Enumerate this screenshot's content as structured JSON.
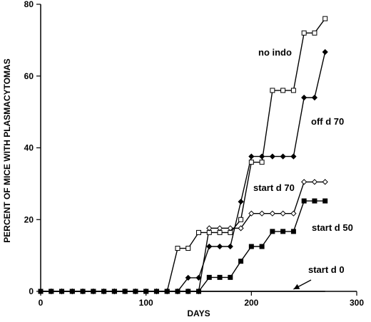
{
  "chart_data": {
    "type": "line",
    "title": "",
    "xlabel": "DAYS",
    "ylabel": "PERCENT OF MICE WITH PLASMACYTOMAS",
    "xlim": [
      0,
      300
    ],
    "ylim": [
      0,
      80
    ],
    "xticks": [
      0,
      100,
      200,
      300
    ],
    "yticks": [
      0,
      20,
      40,
      60,
      80
    ],
    "grid": false,
    "legend": "none",
    "series": [
      {
        "name": "no indo",
        "marker": "open-square",
        "color": "#000000",
        "points": [
          [
            0,
            0
          ],
          [
            10,
            0
          ],
          [
            20,
            0
          ],
          [
            30,
            0
          ],
          [
            40,
            0
          ],
          [
            50,
            0
          ],
          [
            60,
            0
          ],
          [
            70,
            0
          ],
          [
            80,
            0
          ],
          [
            90,
            0
          ],
          [
            100,
            0
          ],
          [
            110,
            0
          ],
          [
            120,
            0
          ],
          [
            130,
            12
          ],
          [
            140,
            12
          ],
          [
            150,
            16.4
          ],
          [
            160,
            16.4
          ],
          [
            170,
            16.4
          ],
          [
            180,
            16.4
          ],
          [
            190,
            20
          ],
          [
            200,
            36
          ],
          [
            210,
            36
          ],
          [
            220,
            56
          ],
          [
            230,
            56
          ],
          [
            240,
            56
          ],
          [
            250,
            72
          ],
          [
            260,
            72
          ],
          [
            270,
            76
          ]
        ]
      },
      {
        "name": "off d 70",
        "marker": "filled-diamond",
        "color": "#000000",
        "points": [
          [
            0,
            0
          ],
          [
            10,
            0
          ],
          [
            20,
            0
          ],
          [
            30,
            0
          ],
          [
            40,
            0
          ],
          [
            50,
            0
          ],
          [
            60,
            0
          ],
          [
            70,
            0
          ],
          [
            80,
            0
          ],
          [
            90,
            0
          ],
          [
            100,
            0
          ],
          [
            110,
            0
          ],
          [
            120,
            0
          ],
          [
            130,
            0
          ],
          [
            140,
            3.8
          ],
          [
            150,
            3.8
          ],
          [
            160,
            12.5
          ],
          [
            170,
            12.5
          ],
          [
            180,
            12.5
          ],
          [
            190,
            25
          ],
          [
            200,
            37.6
          ],
          [
            210,
            37.6
          ],
          [
            220,
            37.6
          ],
          [
            230,
            37.6
          ],
          [
            240,
            37.6
          ],
          [
            250,
            54
          ],
          [
            260,
            54
          ],
          [
            270,
            66.7
          ]
        ]
      },
      {
        "name": "start d 70",
        "marker": "open-diamond",
        "color": "#000000",
        "points": [
          [
            0,
            0
          ],
          [
            10,
            0
          ],
          [
            20,
            0
          ],
          [
            30,
            0
          ],
          [
            40,
            0
          ],
          [
            50,
            0
          ],
          [
            60,
            0
          ],
          [
            70,
            0
          ],
          [
            80,
            0
          ],
          [
            90,
            0
          ],
          [
            100,
            0
          ],
          [
            110,
            0
          ],
          [
            120,
            0
          ],
          [
            130,
            0
          ],
          [
            140,
            0
          ],
          [
            150,
            0
          ],
          [
            160,
            17.6
          ],
          [
            170,
            17.6
          ],
          [
            180,
            17.6
          ],
          [
            190,
            17.6
          ],
          [
            200,
            21.7
          ],
          [
            210,
            21.7
          ],
          [
            220,
            21.7
          ],
          [
            230,
            21.7
          ],
          [
            240,
            21.7
          ],
          [
            250,
            30.5
          ],
          [
            260,
            30.5
          ],
          [
            270,
            30.5
          ]
        ]
      },
      {
        "name": "start d 50",
        "marker": "filled-square",
        "color": "#000000",
        "points": [
          [
            0,
            0
          ],
          [
            10,
            0
          ],
          [
            20,
            0
          ],
          [
            30,
            0
          ],
          [
            40,
            0
          ],
          [
            50,
            0
          ],
          [
            60,
            0
          ],
          [
            70,
            0
          ],
          [
            80,
            0
          ],
          [
            90,
            0
          ],
          [
            100,
            0
          ],
          [
            110,
            0
          ],
          [
            120,
            0
          ],
          [
            130,
            0
          ],
          [
            140,
            0
          ],
          [
            150,
            0
          ],
          [
            160,
            3.9
          ],
          [
            170,
            3.9
          ],
          [
            180,
            3.9
          ],
          [
            190,
            8.4
          ],
          [
            200,
            12.5
          ],
          [
            210,
            12.5
          ],
          [
            220,
            16.7
          ],
          [
            230,
            16.7
          ],
          [
            240,
            16.7
          ],
          [
            250,
            25.2
          ],
          [
            260,
            25.2
          ],
          [
            270,
            25.2
          ]
        ]
      },
      {
        "name": "start d 0",
        "marker": "none",
        "color": "#000000",
        "points": [
          [
            0,
            0
          ],
          [
            270,
            0
          ]
        ]
      }
    ],
    "annotations": [
      {
        "text": "no indo",
        "series": "no indo"
      },
      {
        "text": "off d 70",
        "series": "off d 70"
      },
      {
        "text": "start d 70",
        "series": "start d 70"
      },
      {
        "text": "start d 50",
        "series": "start d 50"
      },
      {
        "text": "start d 0",
        "series": "start d 0",
        "arrow_to": [
          240,
          0
        ]
      }
    ]
  }
}
